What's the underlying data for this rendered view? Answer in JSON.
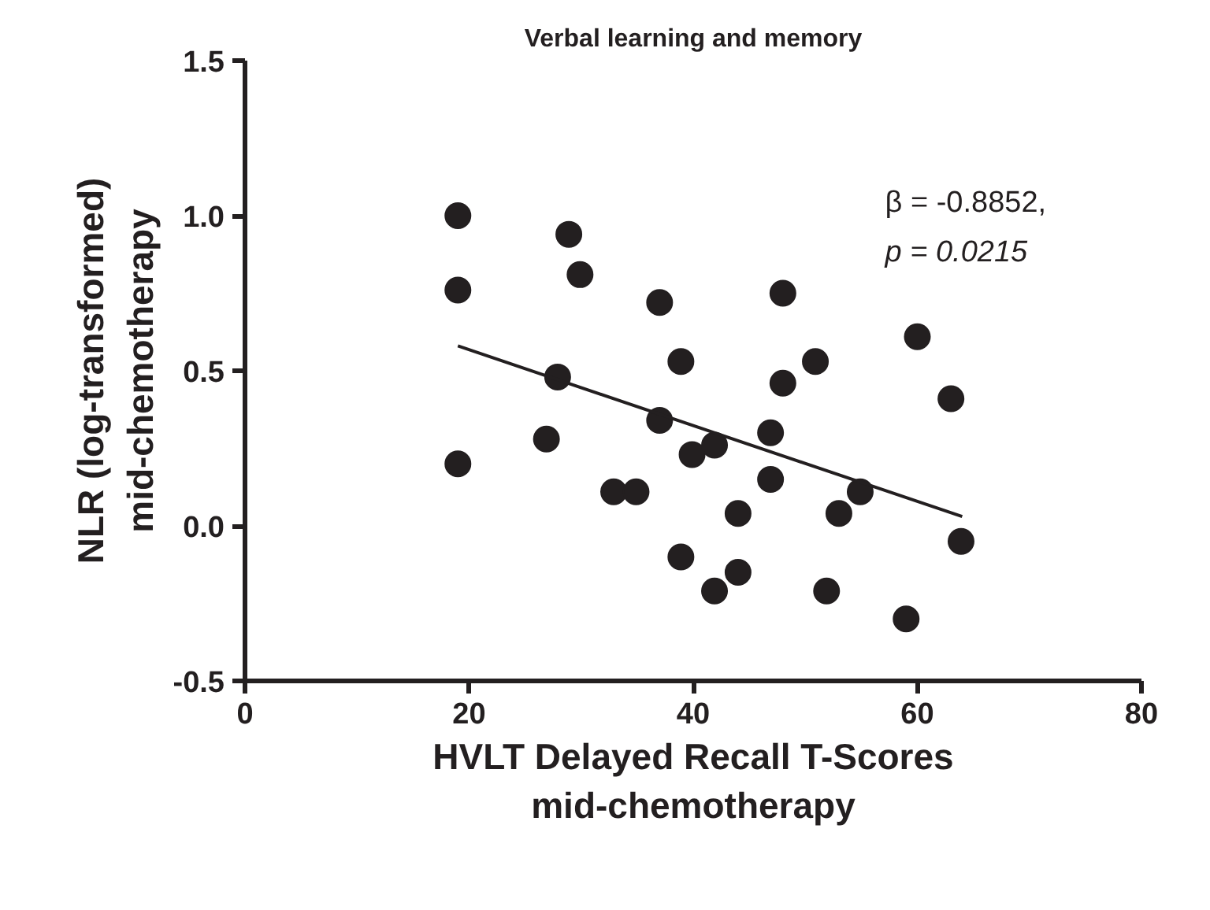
{
  "chart_data": {
    "type": "scatter",
    "title": "Verbal learning and memory",
    "xlabel": "HVLT Delayed Recall T-Scores\nmid-chemotherapy",
    "ylabel": "NLR (log-transformed)\nmid-chemotherapy",
    "xlim": [
      0,
      80
    ],
    "xticks": [
      0,
      20,
      40,
      60,
      80
    ],
    "ylim": [
      -0.5,
      1.5
    ],
    "yticks": [
      {
        "value": -0.5,
        "label": "-0.5"
      },
      {
        "value": 0,
        "label": "0.0"
      },
      {
        "value": 0.5,
        "label": "0.5"
      },
      {
        "value": 1,
        "label": "1.0"
      },
      {
        "value": 1.5,
        "label": "1.5"
      }
    ],
    "grid": false,
    "marker": "circle",
    "annotations": [
      "β = -0.8852,",
      "p = 0.0215"
    ],
    "series": [
      {
        "color": "#231f20",
        "x": [
          19,
          19,
          19,
          28.9,
          29.9,
          37.0,
          27.9,
          26.9,
          37.0,
          32.9,
          34.9,
          38.9,
          48.0,
          50.9,
          48.0,
          60.0,
          63.0,
          39.9,
          41.9,
          46.9,
          46.9,
          44.0,
          53.0,
          54.9,
          38.9,
          44.0,
          41.9,
          51.9,
          59.0,
          63.9
        ],
        "values": [
          1.0,
          0.76,
          0.2,
          0.94,
          0.81,
          0.72,
          0.48,
          0.28,
          0.34,
          0.11,
          0.11,
          0.53,
          0.75,
          0.53,
          0.46,
          0.61,
          0.41,
          0.23,
          0.26,
          0.3,
          0.15,
          0.04,
          0.04,
          0.11,
          -0.1,
          -0.15,
          -0.21,
          -0.21,
          -0.3,
          -0.05
        ]
      },
      {
        "type": "line",
        "color": "#231f20",
        "marker": "none",
        "x": [
          19,
          64
        ],
        "values": [
          0.58,
          0.03
        ]
      }
    ]
  }
}
